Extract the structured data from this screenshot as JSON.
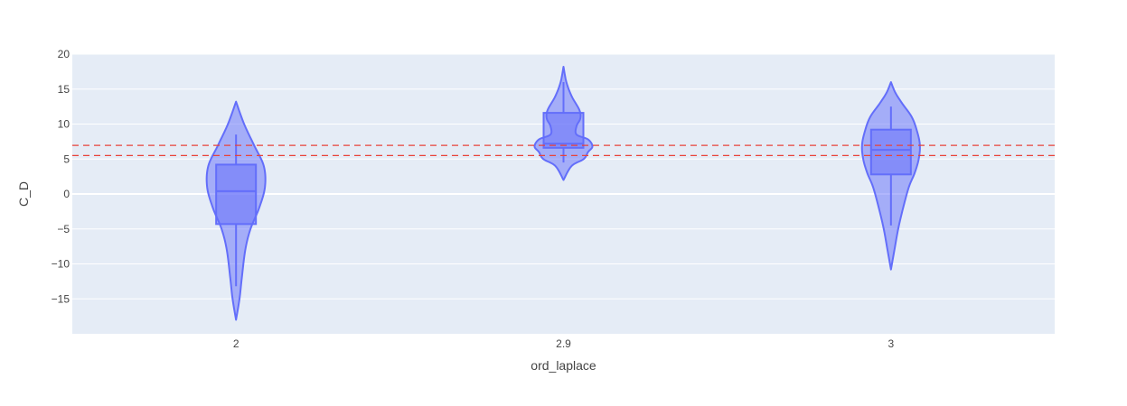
{
  "chart_data": {
    "type": "violin",
    "xlabel": "ord_laplace",
    "ylabel": "C_D",
    "ylim": [
      -20,
      20
    ],
    "y_ticks": [
      20,
      15,
      10,
      5,
      0,
      -5,
      -10,
      -15
    ],
    "y_tick_labels": [
      "20",
      "15",
      "10",
      "5",
      "0",
      "−5",
      "−10",
      "−15"
    ],
    "grid": true,
    "categories": [
      "2",
      "2.9",
      "3"
    ],
    "series": [
      {
        "category": "2",
        "min": -18,
        "max": 13.2,
        "box": {
          "q1": -4.3,
          "median": 0.4,
          "q3": 4.2,
          "whisker_low": -13.2,
          "whisker_high": 8.5
        },
        "density": [
          [
            -18,
            0.0
          ],
          [
            -15,
            0.12
          ],
          [
            -12,
            0.2
          ],
          [
            -8,
            0.32
          ],
          [
            -5,
            0.5
          ],
          [
            -2,
            0.8
          ],
          [
            1,
            1.0
          ],
          [
            4,
            0.96
          ],
          [
            7,
            0.62
          ],
          [
            10,
            0.28
          ],
          [
            13.2,
            0.0
          ]
        ]
      },
      {
        "category": "2.9",
        "min": 2,
        "max": 18.2,
        "box": {
          "q1": 6.6,
          "median": 7.2,
          "q3": 11.6,
          "whisker_low": 4.5,
          "whisker_high": 16
        },
        "density": [
          [
            2,
            0.0
          ],
          [
            4,
            0.28
          ],
          [
            5,
            0.7
          ],
          [
            6,
            0.85
          ],
          [
            6.8,
            1.0
          ],
          [
            7.8,
            0.85
          ],
          [
            8.5,
            0.45
          ],
          [
            9.7,
            0.45
          ],
          [
            10.8,
            0.58
          ],
          [
            12,
            0.55
          ],
          [
            14,
            0.28
          ],
          [
            16,
            0.1
          ],
          [
            18.2,
            0.0
          ]
        ]
      },
      {
        "category": "3",
        "min": -10.8,
        "max": 16,
        "box": {
          "q1": 2.8,
          "median": 6.3,
          "q3": 9.2,
          "whisker_low": -4.5,
          "whisker_high": 12.5
        },
        "density": [
          [
            -10.8,
            0.0
          ],
          [
            -8,
            0.12
          ],
          [
            -5,
            0.25
          ],
          [
            -2,
            0.42
          ],
          [
            1,
            0.62
          ],
          [
            3,
            0.82
          ],
          [
            5,
            0.96
          ],
          [
            7,
            1.0
          ],
          [
            9,
            0.9
          ],
          [
            11,
            0.72
          ],
          [
            13,
            0.38
          ],
          [
            14.5,
            0.15
          ],
          [
            16,
            0.0
          ]
        ]
      }
    ],
    "reference_lines": [
      {
        "y": 6.95,
        "color": "#e8433a",
        "style": "dashed"
      },
      {
        "y": 5.5,
        "color": "#e8433a",
        "style": "dashed"
      }
    ],
    "colors": {
      "plot_bg": "#e5ecf6",
      "grid": "#ffffff",
      "violin_fill": "#636efa",
      "violin_line": "#636efa",
      "reference": "#e8433a"
    }
  }
}
